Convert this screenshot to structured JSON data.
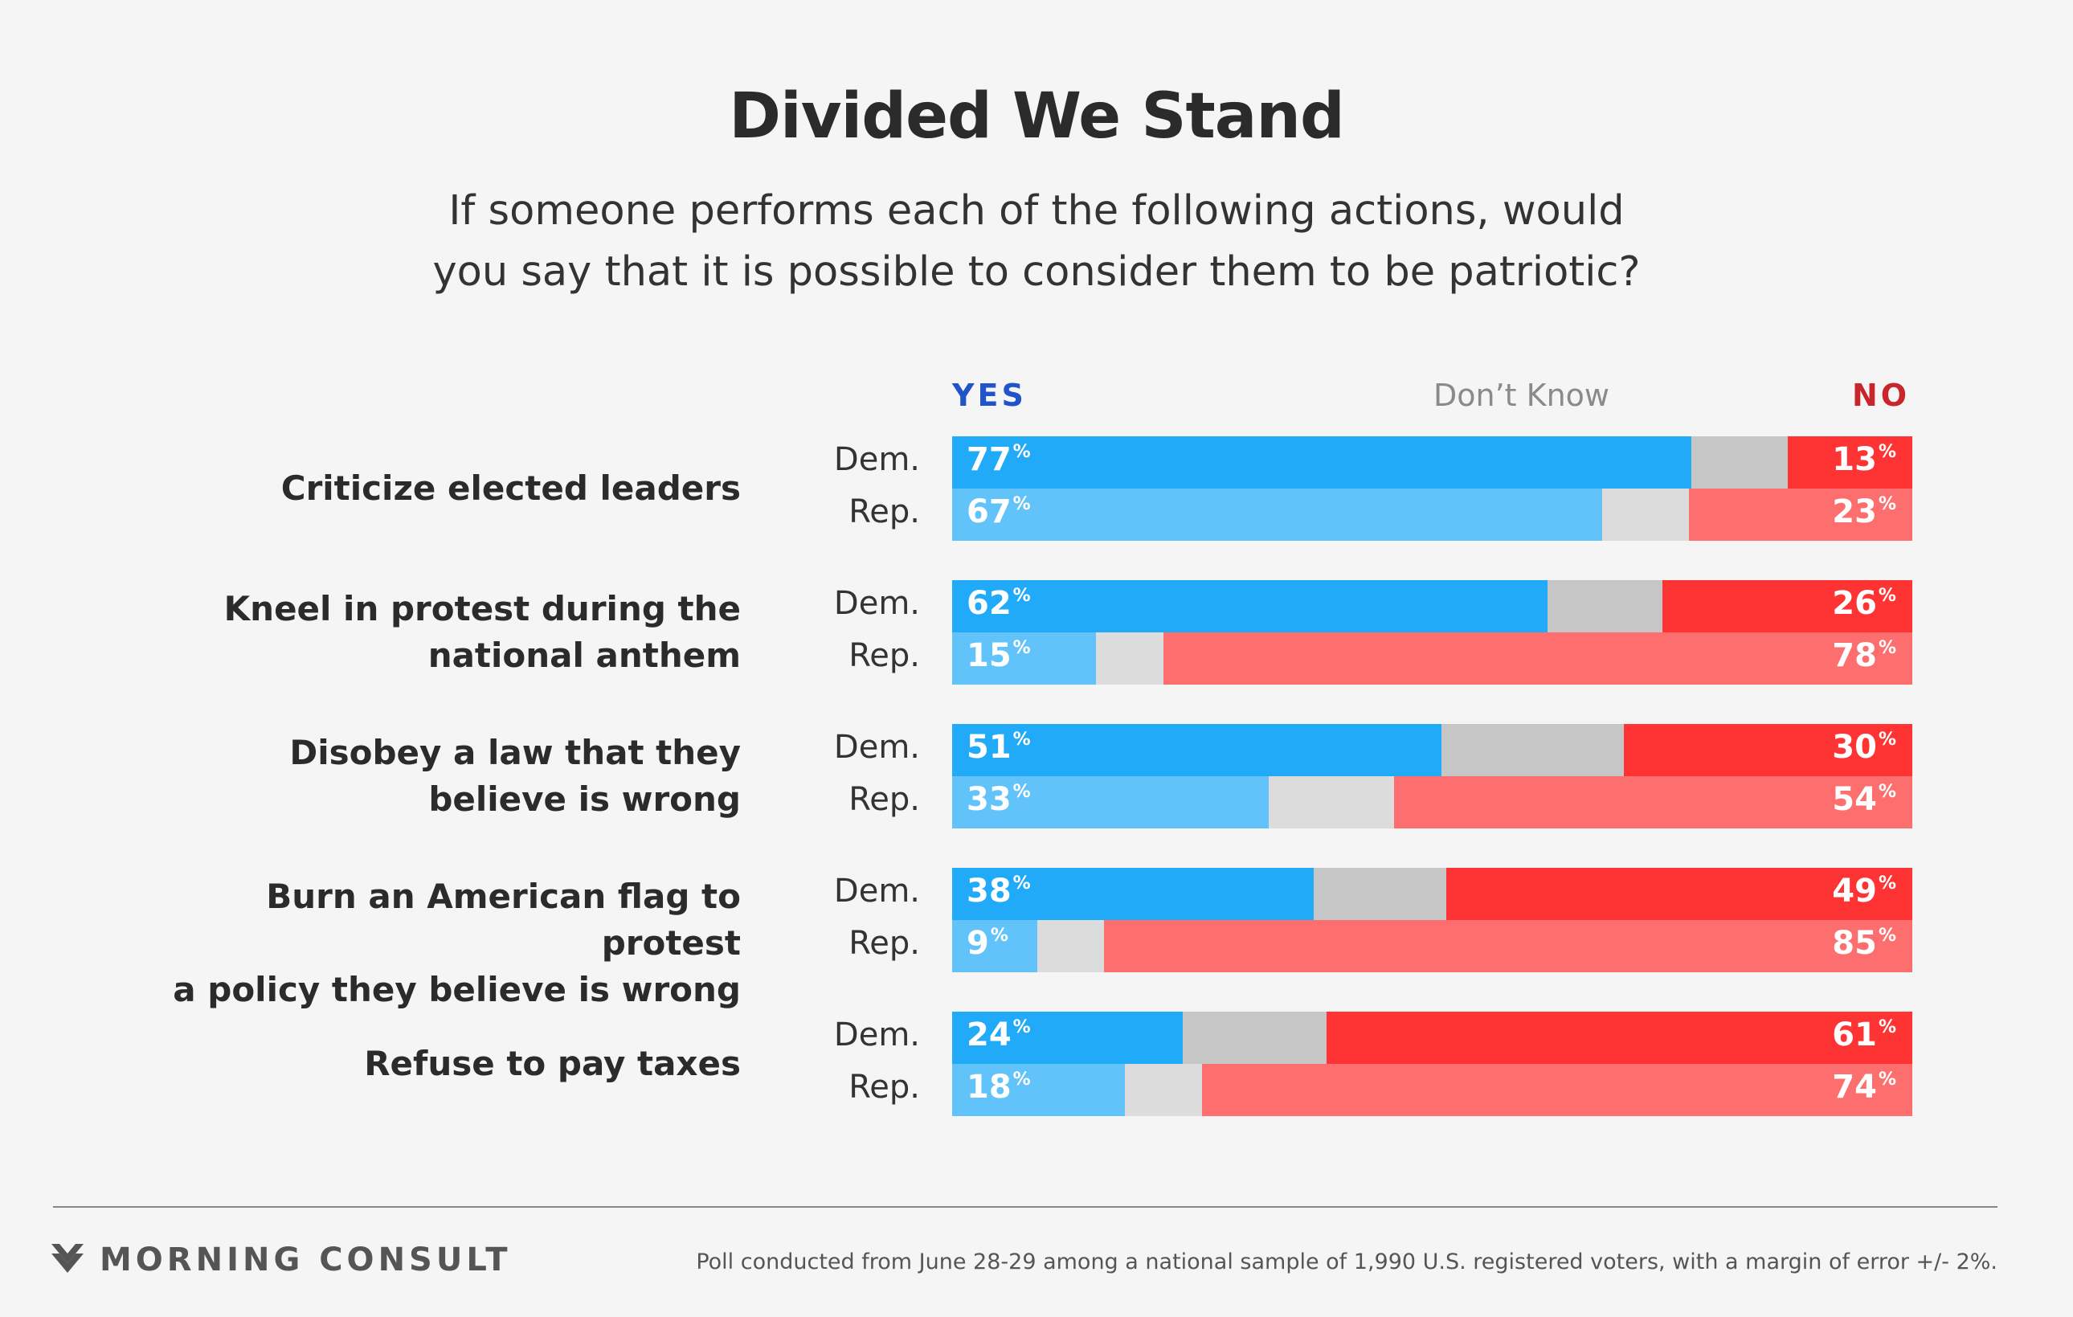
{
  "header": {
    "title": "Divided We Stand",
    "subtitle_line1": "If someone performs each of the following actions, would",
    "subtitle_line2": "you say that it is possible to consider them to be patriotic?"
  },
  "legend": {
    "yes": "YES",
    "dont_know": "Don’t Know",
    "no": "NO"
  },
  "colors": {
    "yes_dem": "#21aaf8",
    "yes_rep": "#62c3fa",
    "dk_dem": "#c6c6c6",
    "dk_rep": "#dcdcdc",
    "no_dem": "#fe3333",
    "no_rep": "#fd6e6e"
  },
  "chart_data": {
    "type": "bar",
    "stacked": true,
    "orientation": "horizontal",
    "series_names": [
      "YES",
      "Don’t Know",
      "NO"
    ],
    "pct_suffix": "%",
    "groups": [
      {
        "label_lines": [
          "Criticize elected leaders"
        ],
        "rows": [
          {
            "party": "Dem.",
            "yes": 77,
            "dont_know": 10,
            "no": 13
          },
          {
            "party": "Rep.",
            "yes": 67,
            "dont_know": 9,
            "no": 23
          }
        ]
      },
      {
        "label_lines": [
          "Kneel in protest during the",
          "national anthem"
        ],
        "rows": [
          {
            "party": "Dem.",
            "yes": 62,
            "dont_know": 12,
            "no": 26
          },
          {
            "party": "Rep.",
            "yes": 15,
            "dont_know": 7,
            "no": 78
          }
        ]
      },
      {
        "label_lines": [
          "Disobey a law that they",
          "believe is wrong"
        ],
        "rows": [
          {
            "party": "Dem.",
            "yes": 51,
            "dont_know": 19,
            "no": 30
          },
          {
            "party": "Rep.",
            "yes": 33,
            "dont_know": 13,
            "no": 54
          }
        ]
      },
      {
        "label_lines": [
          "Burn an American flag to protest",
          "a policy they believe is wrong"
        ],
        "rows": [
          {
            "party": "Dem.",
            "yes": 38,
            "dont_know": 14,
            "no": 49
          },
          {
            "party": "Rep.",
            "yes": 9,
            "dont_know": 7,
            "no": 85
          }
        ]
      },
      {
        "label_lines": [
          "Refuse to pay taxes"
        ],
        "rows": [
          {
            "party": "Dem.",
            "yes": 24,
            "dont_know": 15,
            "no": 61
          },
          {
            "party": "Rep.",
            "yes": 18,
            "dont_know": 8,
            "no": 74
          }
        ]
      }
    ]
  },
  "footer": {
    "brand": "MORNING CONSULT",
    "logo_icon": "morning-consult-chevron-icon",
    "note": "Poll conducted from June 28-29 among a national sample of 1,990 U.S. registered voters, with a margin of error +/- 2%."
  }
}
